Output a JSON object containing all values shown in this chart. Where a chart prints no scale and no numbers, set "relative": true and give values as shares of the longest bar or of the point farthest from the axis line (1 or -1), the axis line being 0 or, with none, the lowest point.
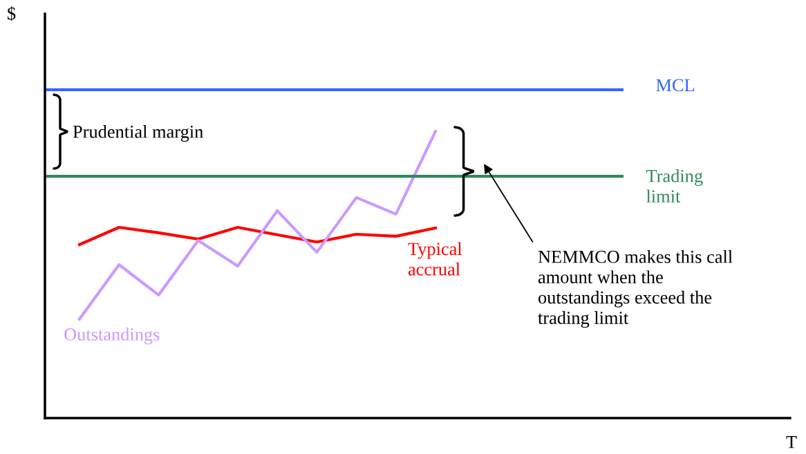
{
  "chart_data": {
    "type": "line",
    "relative": true,
    "marker": "none",
    "line_style": "solid",
    "categories": [
      null,
      null,
      null,
      null,
      null,
      null,
      null,
      null,
      null,
      null
    ],
    "series": [
      {
        "name": "Typical accrual",
        "color": "#ff0000",
        "values": [
          0.605,
          0.665,
          0.646,
          0.624,
          0.665,
          0.639,
          0.614,
          0.641,
          0.634,
          0.663
        ]
      },
      {
        "name": "Outstandings",
        "color": "#cc99ff",
        "values": [
          0.345,
          0.535,
          0.429,
          0.619,
          0.53,
          0.723,
          0.578,
          0.769,
          0.711,
          1.0
        ]
      }
    ],
    "ref_lines": [
      {
        "axis": "y",
        "value": 1.145,
        "label": "MCL",
        "color": "#3366ff"
      },
      {
        "axis": "y",
        "value": 0.843,
        "label": "Trading limit",
        "color": "#2e8b57"
      }
    ],
    "annotations": [
      "$",
      "T",
      "Prudential margin",
      "NEMMCO makes this call amount when the outstandings exceed the trading limit"
    ]
  }
}
